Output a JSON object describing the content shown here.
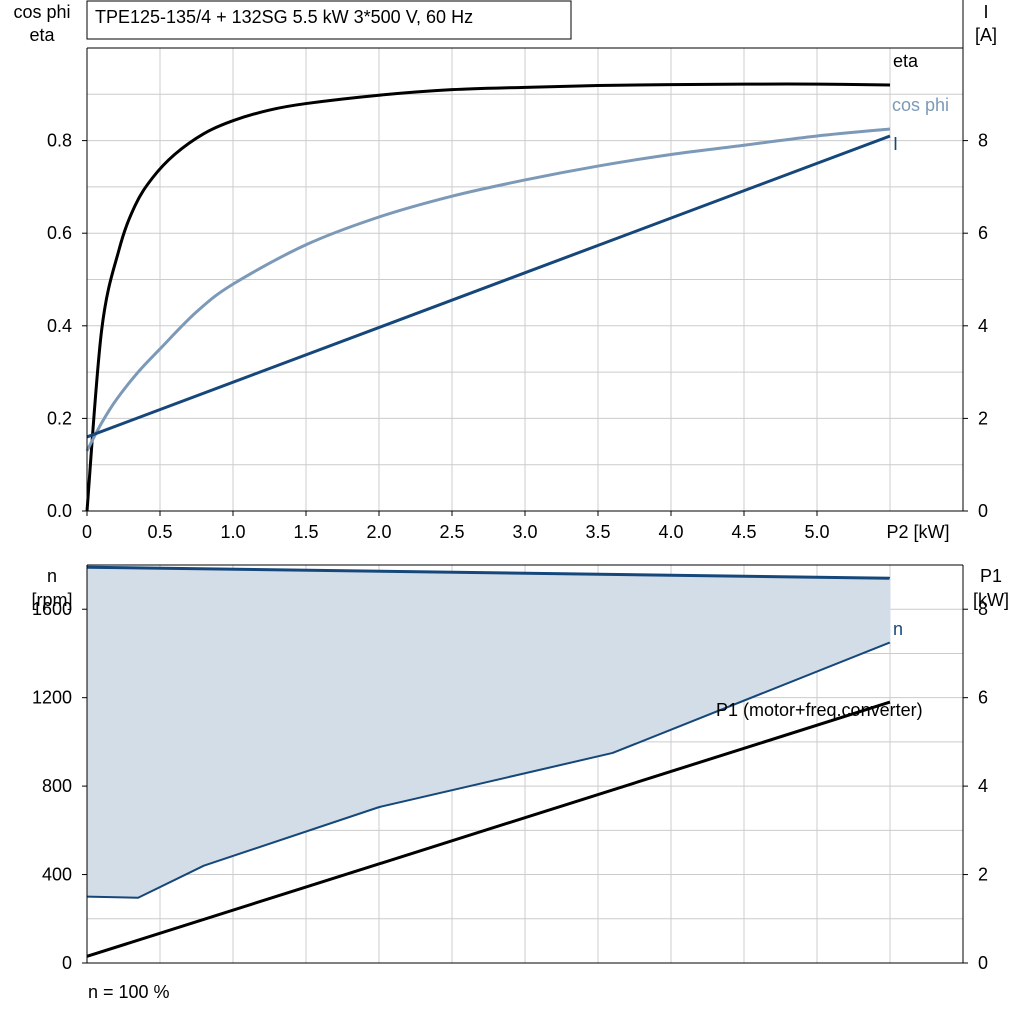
{
  "chart_data": [
    {
      "type": "line",
      "title": "TPE125-135/4 + 132SG   5.5 kW   3*500 V, 60 Hz",
      "xlabel": "P2 [kW]",
      "ylabel_left": [
        "cos phi",
        "eta"
      ],
      "ylabel_right": [
        "I",
        "[A]"
      ],
      "xlim": [
        0,
        6.0
      ],
      "ylim_left": [
        0,
        1.0
      ],
      "ylim_right": [
        0,
        10
      ],
      "x_ticks": [
        "0",
        "0.5",
        "1.0",
        "1.5",
        "2.0",
        "2.5",
        "3.0",
        "3.5",
        "4.0",
        "4.5",
        "5.0"
      ],
      "y_ticks_left": [
        "0.0",
        "0.2",
        "0.4",
        "0.6",
        "0.8"
      ],
      "y_ticks_right": [
        "0",
        "2",
        "4",
        "6",
        "8"
      ],
      "grid": true,
      "series": [
        {
          "name": "eta",
          "axis": "left",
          "color": "#000000",
          "x": [
            0,
            0.1,
            0.22,
            0.33,
            0.45,
            0.6,
            0.8,
            1.0,
            1.25,
            1.5,
            2.0,
            2.5,
            3.0,
            3.5,
            4.0,
            4.5,
            5.0,
            5.5
          ],
          "y": [
            0,
            0.39,
            0.565,
            0.66,
            0.72,
            0.77,
            0.815,
            0.843,
            0.866,
            0.88,
            0.898,
            0.91,
            0.915,
            0.919,
            0.921,
            0.922,
            0.922,
            0.92
          ]
        },
        {
          "name": "cos phi",
          "axis": "left",
          "color": "#7c9ab8",
          "x": [
            0,
            0.1,
            0.2,
            0.35,
            0.5,
            0.75,
            1.0,
            1.5,
            2.0,
            2.5,
            3.0,
            3.5,
            4.0,
            4.5,
            5.0,
            5.5
          ],
          "y": [
            0.13,
            0.19,
            0.24,
            0.3,
            0.35,
            0.43,
            0.49,
            0.575,
            0.635,
            0.68,
            0.715,
            0.745,
            0.77,
            0.79,
            0.81,
            0.825
          ]
        },
        {
          "name": "I",
          "axis": "right",
          "color": "#16477a",
          "x": [
            0,
            5.5
          ],
          "y": [
            1.6,
            8.1
          ]
        }
      ]
    },
    {
      "type": "area",
      "xlim": [
        0,
        6.0
      ],
      "ylabel_left": [
        "n",
        "[rpm]"
      ],
      "ylabel_right": [
        "P1",
        "[kW]"
      ],
      "ylim_left": [
        0,
        1800
      ],
      "ylim_right": [
        0,
        9
      ],
      "y_ticks_left": [
        "0",
        "400",
        "800",
        "1200",
        "1600"
      ],
      "y_ticks_right": [
        "0",
        "2",
        "4",
        "6",
        "8"
      ],
      "grid": true,
      "series": [
        {
          "name": "n",
          "axis": "left",
          "color": "#16477a",
          "role": "upper",
          "x": [
            0,
            5.5
          ],
          "y": [
            1790,
            1740
          ]
        },
        {
          "name": "",
          "axis": "left",
          "color": "#16477a",
          "role": "lower",
          "x": [
            0,
            0.35,
            0.8,
            2.0,
            3.6,
            5.5
          ],
          "y": [
            300,
            295,
            440,
            705,
            950,
            1450
          ]
        },
        {
          "name": "P1 (motor+freq.converter)",
          "axis": "right",
          "color": "#000000",
          "x": [
            0,
            5.5
          ],
          "y": [
            0.15,
            5.9
          ]
        }
      ],
      "fill_color": "#d3dde8",
      "footnote": "n = 100 %"
    }
  ]
}
